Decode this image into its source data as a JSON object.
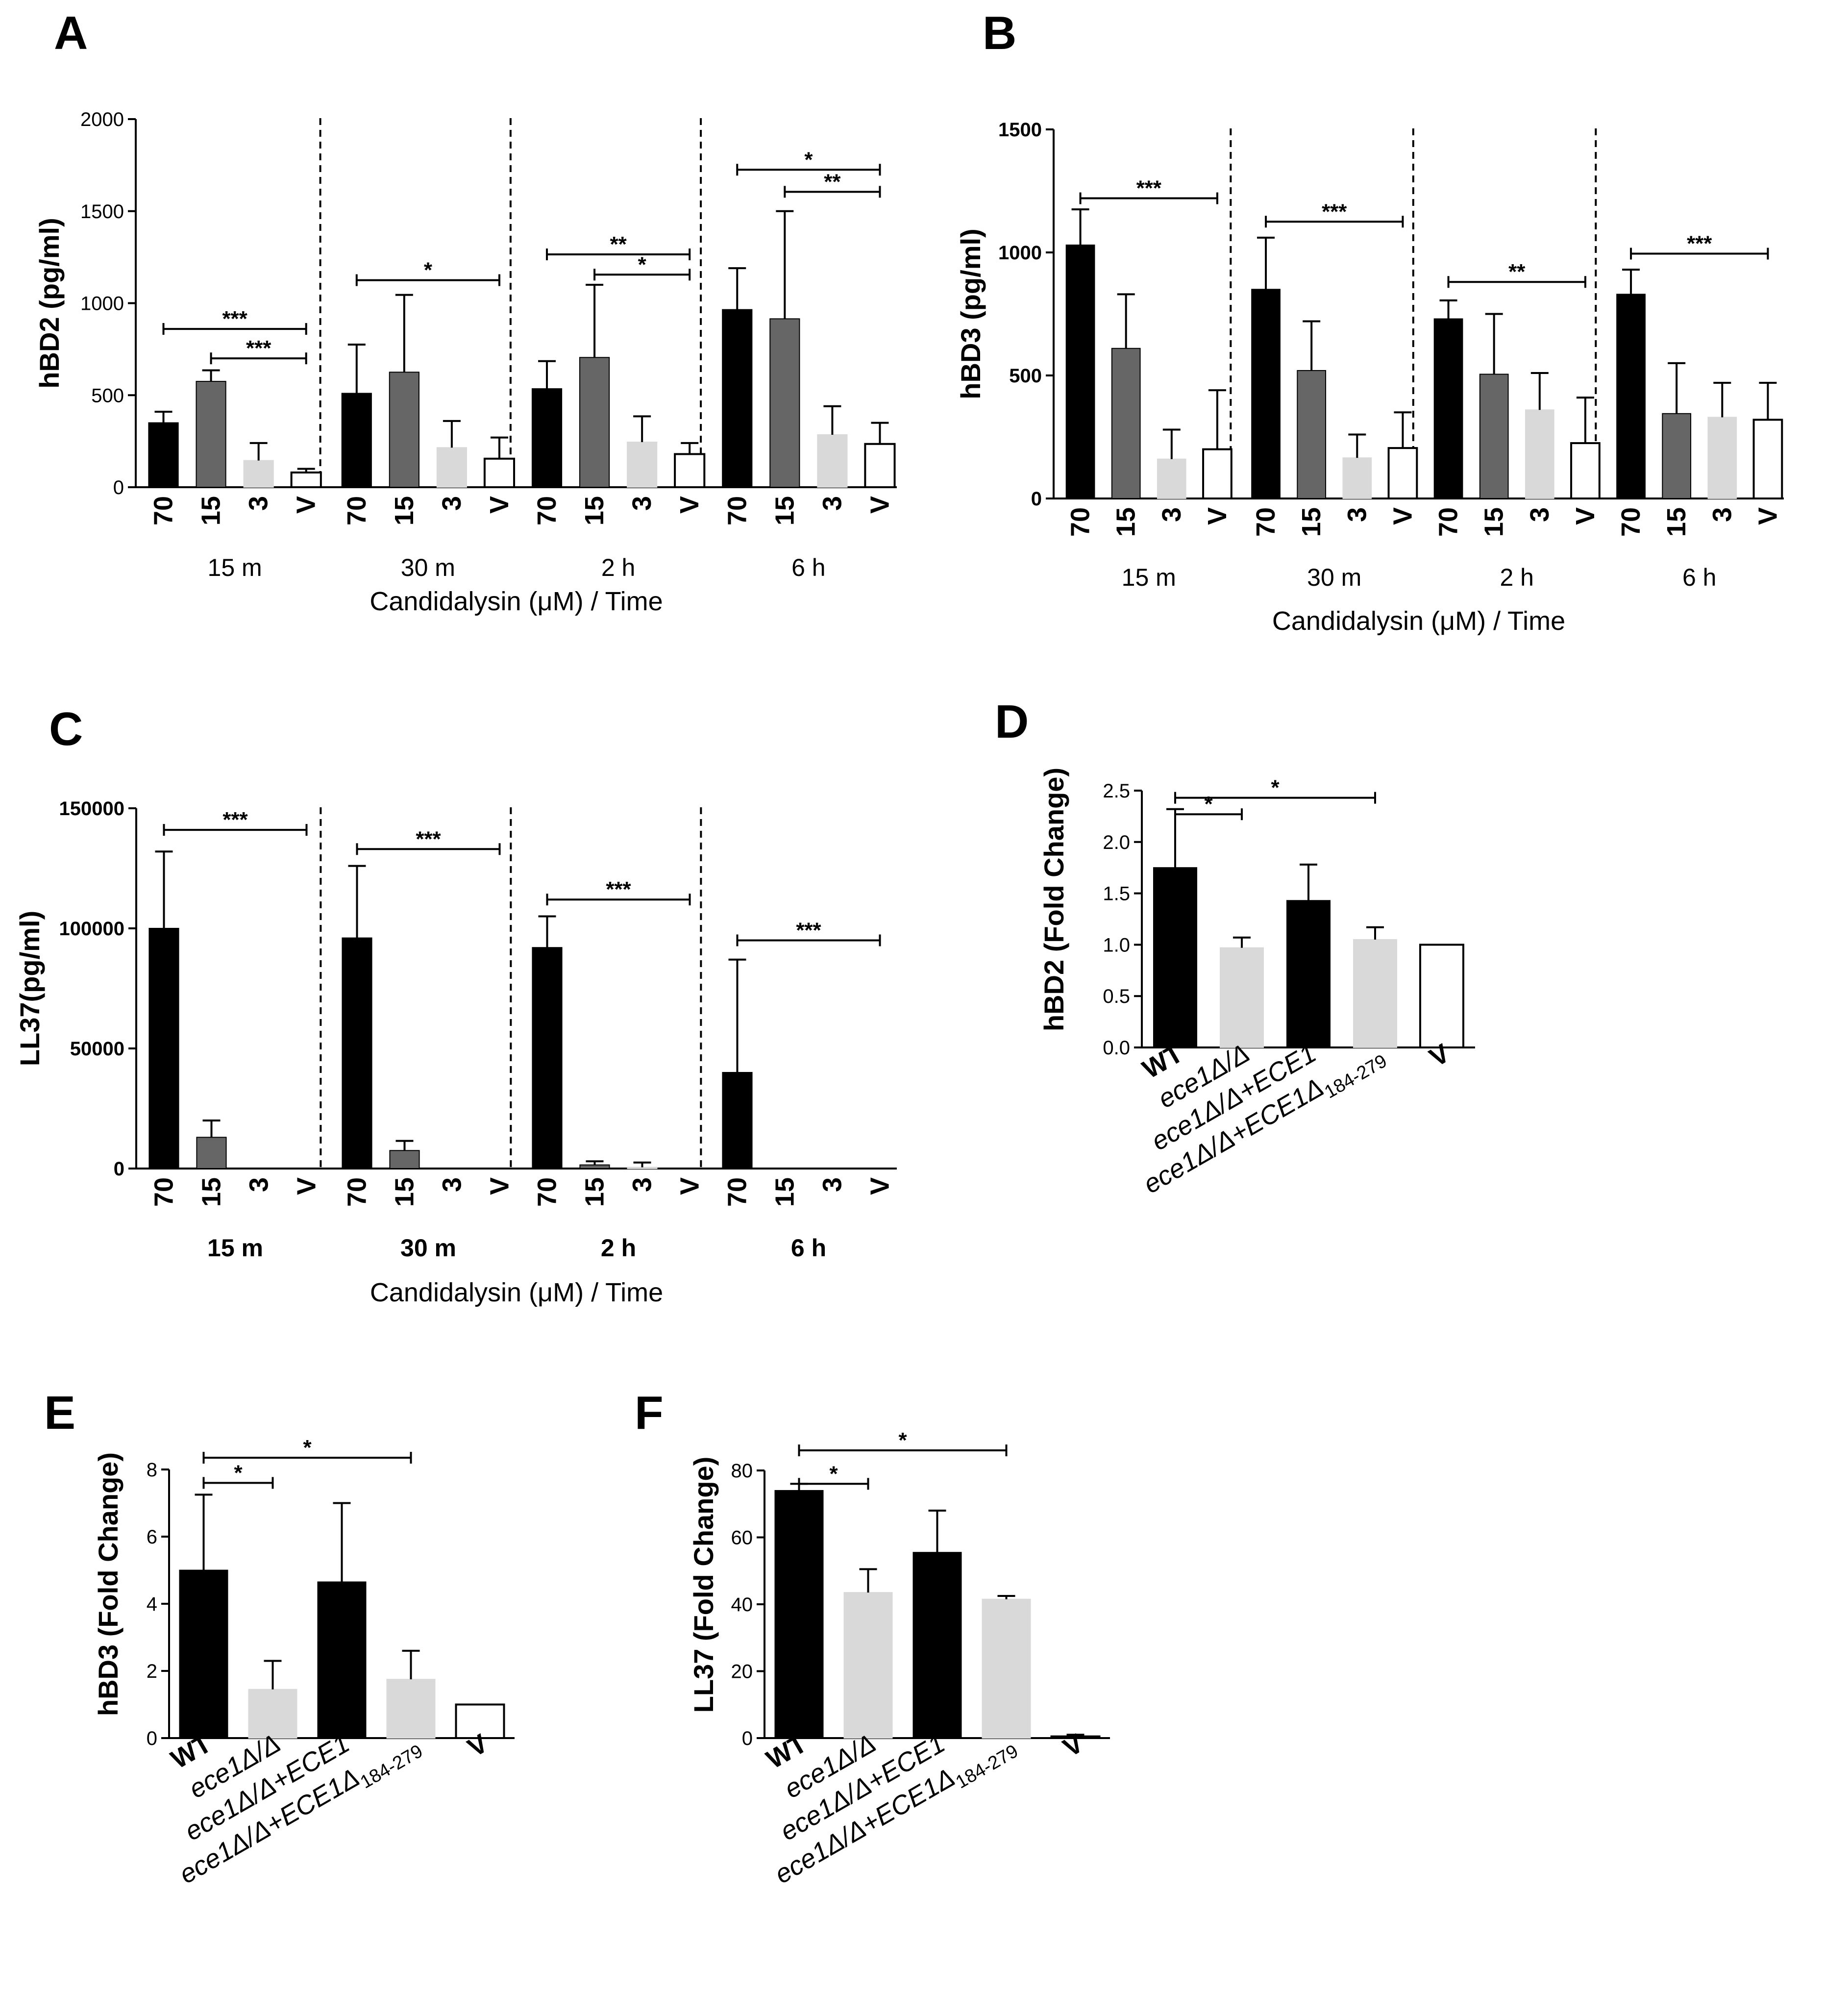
{
  "colors": {
    "70": "#000000",
    "15": "#666666",
    "3": "#d9d9d9",
    "V": "#ffffff",
    "WT": "#000000",
    "del": "#d9d9d9",
    "rev": "#000000",
    "trunc": "#d9d9d9"
  },
  "chart_data": [
    {
      "id": "A",
      "type": "bar",
      "panel_label": "A",
      "ylabel": "hBD2 (pg/ml)",
      "xlabel": "Candidalysin (μM) / Time",
      "ylim": [
        0,
        2000
      ],
      "yticks": [
        "0",
        "500",
        "1000",
        "1500",
        "2000"
      ],
      "groups": [
        "15 m",
        "30 m",
        "2 h",
        "6 h"
      ],
      "categories": [
        "70",
        "15",
        "3",
        "V"
      ],
      "values": [
        [
          350,
          575,
          145,
          80
        ],
        [
          510,
          625,
          215,
          155
        ],
        [
          535,
          705,
          245,
          180
        ],
        [
          965,
          915,
          285,
          235
        ]
      ],
      "errors": [
        [
          60,
          60,
          95,
          20
        ],
        [
          265,
          420,
          145,
          115
        ],
        [
          150,
          395,
          140,
          60
        ],
        [
          225,
          585,
          155,
          115
        ]
      ],
      "significance": [
        {
          "group": 0,
          "from": 0,
          "to": 3,
          "label": "***",
          "y": 860
        },
        {
          "group": 0,
          "from": 1,
          "to": 3,
          "label": "***",
          "y": 700
        },
        {
          "group": 1,
          "from": 0,
          "to": 3,
          "label": "*",
          "y": 1125
        },
        {
          "group": 2,
          "from": 0,
          "to": 3,
          "label": "**",
          "y": 1265
        },
        {
          "group": 2,
          "from": 1,
          "to": 3,
          "label": "*",
          "y": 1155
        },
        {
          "group": 3,
          "from": 0,
          "to": 3,
          "label": "*",
          "y": 1725
        },
        {
          "group": 3,
          "from": 1,
          "to": 3,
          "label": "**",
          "y": 1605
        }
      ]
    },
    {
      "id": "B",
      "type": "bar",
      "panel_label": "B",
      "ylabel": "hBD3 (pg/ml)",
      "xlabel": "Candidalysin (μM) / Time",
      "ylim": [
        0,
        1500
      ],
      "yticks": [
        "0",
        "500",
        "1000",
        "1500"
      ],
      "groups": [
        "15 m",
        "30 m",
        "2 h",
        "6 h"
      ],
      "categories": [
        "70",
        "15",
        "3",
        "V"
      ],
      "values": [
        [
          1030,
          610,
          160,
          200
        ],
        [
          850,
          520,
          165,
          205
        ],
        [
          730,
          505,
          360,
          225
        ],
        [
          830,
          345,
          330,
          320
        ]
      ],
      "errors": [
        [
          145,
          220,
          120,
          240
        ],
        [
          210,
          200,
          95,
          145
        ],
        [
          75,
          245,
          150,
          185
        ],
        [
          100,
          205,
          140,
          150
        ]
      ],
      "significance": [
        {
          "group": 0,
          "from": 0,
          "to": 3,
          "label": "***",
          "y": 1220
        },
        {
          "group": 1,
          "from": 0,
          "to": 3,
          "label": "***",
          "y": 1125
        },
        {
          "group": 2,
          "from": 0,
          "to": 3,
          "label": "**",
          "y": 880
        },
        {
          "group": 3,
          "from": 0,
          "to": 3,
          "label": "***",
          "y": 995
        }
      ]
    },
    {
      "id": "C",
      "type": "bar",
      "panel_label": "C",
      "ylabel": "LL37(pg/ml)",
      "xlabel": "Candidalysin (μM) / Time",
      "ylim": [
        0,
        150000
      ],
      "yticks": [
        "0",
        "50000",
        "100000",
        "150000"
      ],
      "groups": [
        "15 m",
        "30 m",
        "2 h",
        "6 h"
      ],
      "categories": [
        "70",
        "15",
        "3",
        "V"
      ],
      "values": [
        [
          100000,
          13000,
          0,
          0
        ],
        [
          96000,
          7500,
          0,
          0
        ],
        [
          92000,
          1500,
          500,
          0
        ],
        [
          40000,
          0,
          0,
          0
        ]
      ],
      "errors": [
        [
          32000,
          7000,
          0,
          0
        ],
        [
          30000,
          4000,
          0,
          0
        ],
        [
          13000,
          1500,
          2000,
          0
        ],
        [
          47000,
          0,
          0,
          0
        ]
      ],
      "significance": [
        {
          "group": 0,
          "from": 0,
          "to": 3,
          "label": "***",
          "y": 141000
        },
        {
          "group": 1,
          "from": 0,
          "to": 3,
          "label": "***",
          "y": 133000
        },
        {
          "group": 2,
          "from": 0,
          "to": 3,
          "label": "***",
          "y": 112000
        },
        {
          "group": 3,
          "from": 0,
          "to": 3,
          "label": "***",
          "y": 95000
        }
      ]
    },
    {
      "id": "D",
      "type": "bar",
      "panel_label": "D",
      "ylabel": "hBD2 (Fold Change)",
      "ylim": [
        0,
        2.5
      ],
      "yticks": [
        "0.0",
        "0.5",
        "1.0",
        "1.5",
        "2.0",
        "2.5"
      ],
      "categories": [
        "WT",
        "ece1Δ/Δ",
        "ece1Δ/Δ+ECE1",
        "ece1Δ/Δ+ECE1Δ",
        "V"
      ],
      "subscript": "184-279",
      "values": [
        1.75,
        0.97,
        1.43,
        1.05,
        1.0
      ],
      "errors": [
        0.57,
        0.1,
        0.35,
        0.12,
        0
      ],
      "significance": [
        {
          "from": 0,
          "to": 1,
          "label": "*",
          "y": 2.27
        },
        {
          "from": 0,
          "to": 3,
          "label": "*",
          "y": 2.43
        }
      ]
    },
    {
      "id": "E",
      "type": "bar",
      "panel_label": "E",
      "ylabel": "hBD3 (Fold Change)",
      "ylim": [
        0,
        8
      ],
      "yticks": [
        "0",
        "2",
        "4",
        "6",
        "8"
      ],
      "categories": [
        "WT",
        "ece1Δ/Δ",
        "ece1Δ/Δ+ECE1",
        "ece1Δ/Δ+ECE1Δ",
        "V"
      ],
      "subscript": "184-279",
      "values": [
        5.0,
        1.45,
        4.65,
        1.75,
        1.0
      ],
      "errors": [
        2.25,
        0.85,
        2.35,
        0.85,
        0
      ],
      "significance": [
        {
          "from": 0,
          "to": 1,
          "label": "*",
          "y": 7.6
        },
        {
          "from": 0,
          "to": 3,
          "label": "*",
          "y": 8.35
        }
      ]
    },
    {
      "id": "F",
      "type": "bar",
      "panel_label": "F",
      "ylabel": "LL37 (Fold Change)",
      "ylim": [
        0,
        80
      ],
      "yticks": [
        "0",
        "20",
        "40",
        "60",
        "80"
      ],
      "categories": [
        "WT",
        "ece1Δ/Δ",
        "ece1Δ/Δ+ECE1",
        "ece1Δ/Δ+ECE1Δ",
        "V"
      ],
      "subscript": "184-279",
      "values": [
        74,
        43.5,
        55.5,
        41.5,
        0.5
      ],
      "errors": [
        2,
        7,
        12.5,
        1,
        0.5
      ],
      "significance": [
        {
          "from": 0,
          "to": 1,
          "label": "*",
          "y": 76
        },
        {
          "from": 0,
          "to": 3,
          "label": "*",
          "y": 86
        }
      ]
    }
  ]
}
